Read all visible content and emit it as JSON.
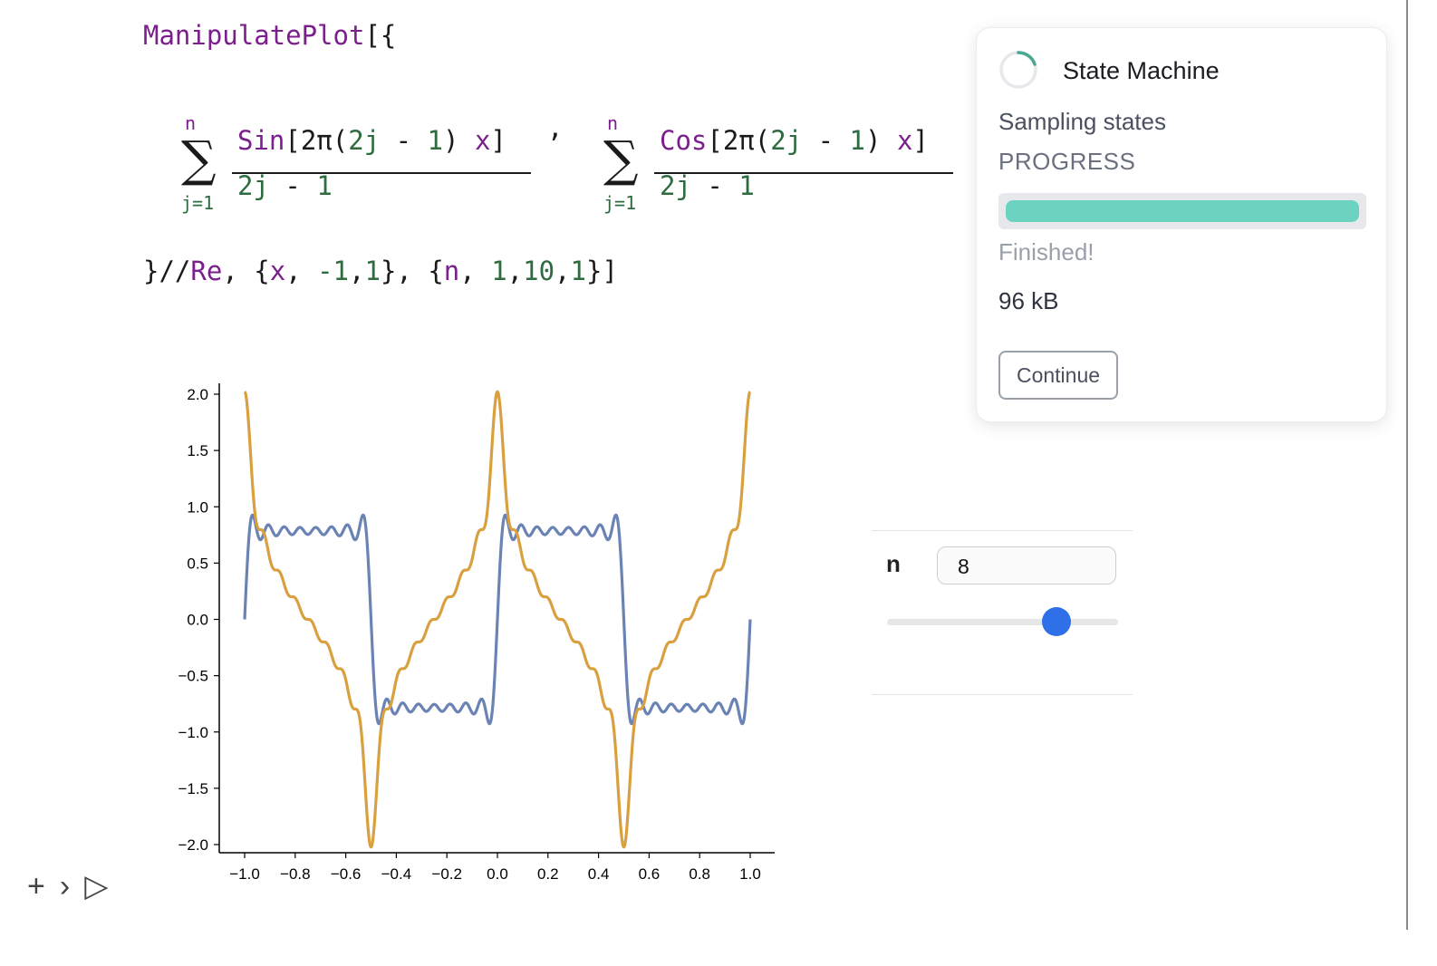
{
  "code": {
    "line1": {
      "fn": "ManipulatePlot",
      "open": "[{"
    },
    "sum1": {
      "upper": "n",
      "lower": "j=1",
      "num_fn": "Sin",
      "num_rest_open": "[2π(",
      "num_a": "2j",
      "num_minus": " - ",
      "num_b": "1",
      "num_close": ") ",
      "num_x": "x",
      "num_end": "]",
      "den_a": "2j",
      "den_minus": " - ",
      "den_b": "1"
    },
    "separator": ",",
    "sum2": {
      "upper": "n",
      "lower": "j=1",
      "num_fn": "Cos",
      "num_rest_open": "[2π(",
      "num_a": "2j",
      "num_minus": " - ",
      "num_b": "1",
      "num_close": ") ",
      "num_x": "x",
      "num_end": "]",
      "den_a": "2j",
      "den_minus": " - ",
      "den_b": "1"
    },
    "line3": {
      "p1": "}//",
      "re": "Re",
      "p2": ", {",
      "x": "x",
      "p3": ", ",
      "m1": "-1",
      "p4": ",",
      "one": "1",
      "p5": "}, {",
      "n": "n",
      "p6": ", ",
      "a": "1",
      "p7": ",",
      "b": "10",
      "p8": ",",
      "c": "1",
      "p9": "}]"
    }
  },
  "chart_data": {
    "type": "line",
    "xlim": [
      -1.0,
      1.0
    ],
    "ylim": [
      -2.0,
      2.0
    ],
    "x_ticks": [
      "−1.0",
      "−0.8",
      "−0.6",
      "−0.4",
      "−0.2",
      "0.0",
      "0.2",
      "0.4",
      "0.6",
      "0.8",
      "1.0"
    ],
    "y_ticks": [
      "2.0",
      "1.5",
      "1.0",
      "0.5",
      "0.0",
      "−0.5",
      "−1.0",
      "−1.5",
      "−2.0"
    ],
    "n_terms": 8,
    "series": [
      {
        "formula": "sum_{j=1}^{8} sin(2π(2j−1)x)/(2j−1)",
        "color": "#6a83b4"
      },
      {
        "formula": "sum_{j=1}^{8} cos(2π(2j−1)x)/(2j−1)",
        "color": "#d9a03f"
      }
    ],
    "grid": false
  },
  "cell_controls": {
    "add": "+",
    "chevron": "›",
    "run": "▷"
  },
  "manipulator": {
    "label": "n",
    "value": "8",
    "min": 1,
    "max": 10,
    "step": 1,
    "current": 8
  },
  "popup": {
    "title": "State Machine",
    "subtitle": "Sampling states",
    "status": "PROGRESS",
    "progress": 1.0,
    "message": "Finished!",
    "size": "96 kB",
    "button": "Continue",
    "accent": "#6bd3bf"
  }
}
